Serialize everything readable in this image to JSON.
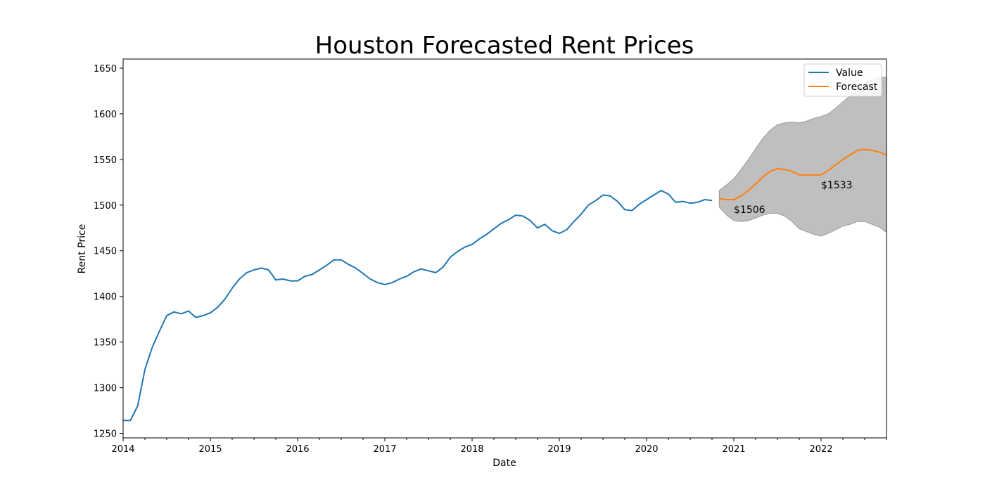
{
  "chart_data": {
    "type": "line",
    "title": "Houston Forecasted Rent Prices",
    "xlabel": "Date",
    "ylabel": "Rent Price",
    "xlim": [
      "2014-01",
      "2022-10"
    ],
    "ylim": [
      1245,
      1660
    ],
    "x_ticks": [
      "2014",
      "2015",
      "2016",
      "2017",
      "2018",
      "2019",
      "2020",
      "2021",
      "2022"
    ],
    "y_ticks": [
      1250,
      1300,
      1350,
      1400,
      1450,
      1500,
      1550,
      1600,
      1650
    ],
    "grid": false,
    "legend_position": "top-right",
    "colors": {
      "value": "#1f77b4",
      "forecast": "#ff7f0e",
      "confidence_band": "#bfbfbf",
      "confidence_edge": "#9a9a9a"
    },
    "series": [
      {
        "name": "Value",
        "x": [
          "2014-01",
          "2014-02",
          "2014-03",
          "2014-04",
          "2014-05",
          "2014-06",
          "2014-07",
          "2014-08",
          "2014-09",
          "2014-10",
          "2014-11",
          "2014-12",
          "2015-01",
          "2015-02",
          "2015-03",
          "2015-04",
          "2015-05",
          "2015-06",
          "2015-07",
          "2015-08",
          "2015-09",
          "2015-10",
          "2015-11",
          "2015-12",
          "2016-01",
          "2016-02",
          "2016-03",
          "2016-04",
          "2016-05",
          "2016-06",
          "2016-07",
          "2016-08",
          "2016-09",
          "2016-10",
          "2016-11",
          "2016-12",
          "2017-01",
          "2017-02",
          "2017-03",
          "2017-04",
          "2017-05",
          "2017-06",
          "2017-07",
          "2017-08",
          "2017-09",
          "2017-10",
          "2017-11",
          "2017-12",
          "2018-01",
          "2018-02",
          "2018-03",
          "2018-04",
          "2018-05",
          "2018-06",
          "2018-07",
          "2018-08",
          "2018-09",
          "2018-10",
          "2018-11",
          "2018-12",
          "2019-01",
          "2019-02",
          "2019-03",
          "2019-04",
          "2019-05",
          "2019-06",
          "2019-07",
          "2019-08",
          "2019-09",
          "2019-10",
          "2019-11",
          "2019-12",
          "2020-01",
          "2020-02",
          "2020-03",
          "2020-04",
          "2020-05",
          "2020-06",
          "2020-07",
          "2020-08",
          "2020-09",
          "2020-10"
        ],
        "values": [
          1264,
          1264,
          1280,
          1320,
          1344,
          1362,
          1379,
          1383,
          1381,
          1384,
          1377,
          1379,
          1382,
          1388,
          1397,
          1409,
          1419,
          1426,
          1429,
          1431,
          1429,
          1418,
          1419,
          1417,
          1417,
          1422,
          1424,
          1429,
          1434,
          1440,
          1440,
          1435,
          1431,
          1425,
          1419,
          1415,
          1413,
          1415,
          1419,
          1422,
          1427,
          1430,
          1428,
          1426,
          1432,
          1443,
          1449,
          1454,
          1457,
          1463,
          1468,
          1474,
          1480,
          1484,
          1489,
          1488,
          1483,
          1475,
          1479,
          1472,
          1469,
          1473,
          1482,
          1490,
          1500,
          1505,
          1511,
          1510,
          1504,
          1495,
          1494,
          1501,
          1506,
          1511,
          1516,
          1512,
          1503,
          1504,
          1502,
          1503,
          1506,
          1505
        ]
      },
      {
        "name": "Forecast",
        "x": [
          "2020-11",
          "2020-12",
          "2021-01",
          "2021-02",
          "2021-03",
          "2021-04",
          "2021-05",
          "2021-06",
          "2021-07",
          "2021-08",
          "2021-09",
          "2021-10",
          "2021-11",
          "2021-12",
          "2022-01",
          "2022-02",
          "2022-03",
          "2022-04",
          "2022-05",
          "2022-06",
          "2022-07",
          "2022-08",
          "2022-09",
          "2022-10"
        ],
        "values": [
          1507,
          1506,
          1506,
          1510,
          1516,
          1523,
          1531,
          1537,
          1540,
          1539,
          1537,
          1533,
          1533,
          1533,
          1533,
          1538,
          1544,
          1550,
          1555,
          1560,
          1561,
          1560,
          1558,
          1555
        ],
        "lower": [
          1498,
          1489,
          1483,
          1482,
          1483,
          1486,
          1489,
          1491,
          1491,
          1488,
          1482,
          1474,
          1471,
          1468,
          1466,
          1469,
          1473,
          1477,
          1479,
          1482,
          1482,
          1479,
          1476,
          1470
        ],
        "upper": [
          1516,
          1522,
          1529,
          1539,
          1550,
          1562,
          1573,
          1582,
          1588,
          1590,
          1591,
          1590,
          1592,
          1595,
          1597,
          1600,
          1606,
          1613,
          1620,
          1627,
          1633,
          1637,
          1640,
          1640
        ]
      }
    ],
    "annotations": [
      {
        "text": "$1506",
        "x": "2021-01",
        "y": 1506
      },
      {
        "text": "$1533",
        "x": "2022-01",
        "y": 1533
      }
    ]
  }
}
